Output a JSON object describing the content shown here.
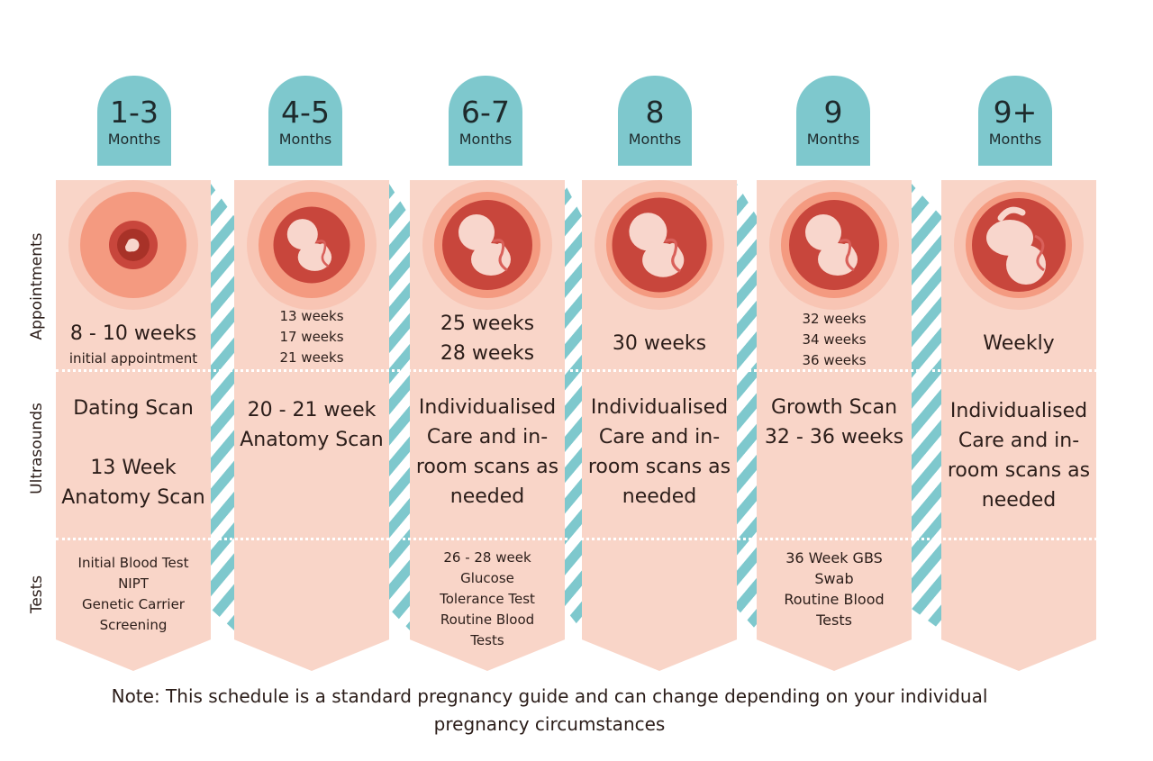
{
  "row_labels": {
    "appointments": "Appointments",
    "ultrasounds": "Ultrasounds",
    "tests": "Tests"
  },
  "stages": [
    {
      "number": "1-3",
      "unit": "Months",
      "fetus_icon": "embryo-icon",
      "appointments": [
        "8 - 10 weeks",
        "initial appointment"
      ],
      "ultrasounds": [
        "Dating Scan",
        "",
        "13 Week",
        "Anatomy Scan"
      ],
      "tests": [
        "Initial Blood Test",
        "NIPT",
        "Genetic Carrier",
        "Screening"
      ]
    },
    {
      "number": "4-5",
      "unit": "Months",
      "fetus_icon": "fetus-icon",
      "appointments": [
        "13 weeks",
        "17 weeks",
        "21 weeks"
      ],
      "ultrasounds": [
        "20 - 21 week",
        "Anatomy Scan"
      ],
      "tests": []
    },
    {
      "number": "6-7",
      "unit": "Months",
      "fetus_icon": "fetus-icon",
      "appointments": [
        "25 weeks",
        "28 weeks"
      ],
      "ultrasounds": [
        "Individualised",
        "Care and in-",
        "room scans as",
        "needed"
      ],
      "tests": [
        "26 - 28 week",
        "Glucose",
        "Tolerance Test",
        "Routine Blood",
        "Tests"
      ]
    },
    {
      "number": "8",
      "unit": "Months",
      "fetus_icon": "fetus-icon",
      "appointments": [
        "30 weeks"
      ],
      "ultrasounds": [
        "Individualised",
        "Care and in-",
        "room scans as",
        "needed"
      ],
      "tests": []
    },
    {
      "number": "9",
      "unit": "Months",
      "fetus_icon": "fetus-icon",
      "appointments": [
        "32 weeks",
        "34 weeks",
        "36 weeks"
      ],
      "ultrasounds": [
        "Growth Scan",
        "32 - 36 weeks"
      ],
      "tests": [
        "36 Week GBS",
        "Swab",
        "Routine Blood",
        "Tests"
      ]
    },
    {
      "number": "9+",
      "unit": "Months",
      "fetus_icon": "fetus-head-down-icon",
      "appointments": [
        "Weekly"
      ],
      "ultrasounds": [
        "Individualised",
        "Care and in-",
        "room scans as",
        "needed"
      ],
      "tests": []
    }
  ],
  "note": [
    "Note: This schedule is a standard pregnancy guide and can change depending on your individual",
    "pregnancy circumstances"
  ],
  "colors": {
    "tab": "#7ec8cd",
    "column": "#f9d5c8",
    "stripe": "#7ec8cd",
    "womb_outer": "#f8b8a4",
    "womb_mid": "#f49a80",
    "womb_inner": "#c8463c",
    "fetus": "#f8d6cc"
  }
}
